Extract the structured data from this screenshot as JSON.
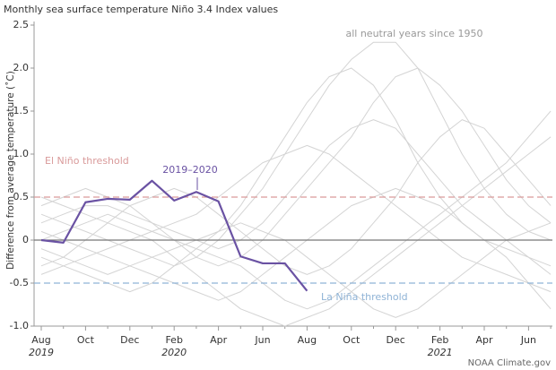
{
  "chart_data": {
    "type": "line",
    "title": "Monthly sea surface temperature Niño 3.4 Index values",
    "y_label": "Difference from average temperature (˚C)",
    "source": "NOAA Climate.gov",
    "neutral_label": "all neutral years since 1950",
    "categories": [
      "Aug",
      null,
      "Oct",
      null,
      "Dec",
      null,
      "Feb",
      null,
      "Apr",
      null,
      "Jun",
      null,
      "Aug",
      null,
      "Oct",
      null,
      "Dec",
      null,
      "Feb",
      null,
      "Apr",
      null,
      "Jun",
      null
    ],
    "years": [
      "2019",
      null,
      null,
      null,
      null,
      null,
      "2020",
      null,
      null,
      null,
      null,
      null,
      null,
      null,
      null,
      null,
      null,
      null,
      "2021",
      null,
      null,
      null,
      null,
      null
    ],
    "ylim": [
      -1.0,
      2.5
    ],
    "yticks": [
      {
        "value": -1.0,
        "label": "-1.0"
      },
      -0.5,
      0,
      0.5,
      {
        "value": 1.0,
        "label": "1.0"
      },
      1.5,
      {
        "value": 2.0,
        "label": "2.0"
      },
      2.5
    ],
    "reference_line": 0,
    "thresholds": [
      {
        "value": 0.5,
        "label": "El Niño threshold",
        "color": "#d99a9a"
      },
      {
        "value": -0.5,
        "label": "La Niña threshold",
        "color": "#8fb3d6"
      }
    ],
    "background_series": [
      {
        "color": "#d4d4d4",
        "values": [
          0.3,
          0.2,
          0.1,
          0.0,
          -0.1,
          -0.2,
          -0.3,
          -0.2,
          0.0,
          0.3,
          0.6,
          1.0,
          1.4,
          1.8,
          2.1,
          2.3,
          2.3,
          2.0,
          1.5,
          1.0,
          0.6,
          0.3,
          0.1,
          0.0
        ]
      },
      {
        "color": "#d4d4d4",
        "values": [
          -0.2,
          -0.3,
          -0.4,
          -0.5,
          -0.6,
          -0.5,
          -0.3,
          -0.1,
          0.1,
          0.4,
          0.8,
          1.2,
          1.6,
          1.9,
          2.0,
          1.8,
          1.4,
          0.9,
          0.5,
          0.2,
          0.0,
          -0.1,
          -0.2,
          -0.3
        ]
      },
      {
        "color": "#d4d4d4",
        "values": [
          0.5,
          0.4,
          0.3,
          0.2,
          0.1,
          0.0,
          -0.2,
          -0.4,
          -0.6,
          -0.8,
          -0.9,
          -1.0,
          -0.9,
          -0.8,
          -0.6,
          -0.4,
          -0.2,
          0.0,
          0.2,
          0.4,
          0.6,
          0.8,
          1.0,
          1.2
        ]
      },
      {
        "color": "#d4d4d4",
        "values": [
          0.0,
          0.1,
          0.2,
          0.3,
          0.2,
          0.1,
          0.0,
          -0.1,
          -0.2,
          -0.3,
          -0.5,
          -0.7,
          -0.8,
          -0.7,
          -0.5,
          -0.3,
          -0.1,
          0.1,
          0.3,
          0.5,
          0.7,
          0.9,
          1.2,
          1.5
        ]
      },
      {
        "color": "#d4d4d4",
        "values": [
          -0.4,
          -0.3,
          -0.2,
          -0.1,
          0.0,
          0.1,
          0.2,
          0.3,
          0.5,
          0.7,
          0.9,
          1.0,
          1.1,
          1.0,
          0.8,
          0.6,
          0.4,
          0.2,
          0.0,
          -0.2,
          -0.3,
          -0.4,
          -0.5,
          -0.6
        ]
      },
      {
        "color": "#d4d4d4",
        "values": [
          0.2,
          0.3,
          0.4,
          0.4,
          0.3,
          0.2,
          0.1,
          0.0,
          -0.1,
          0.0,
          0.2,
          0.5,
          0.8,
          1.1,
          1.3,
          1.4,
          1.3,
          1.0,
          0.7,
          0.4,
          0.2,
          0.0,
          -0.2,
          -0.4
        ]
      },
      {
        "color": "#d4d4d4",
        "values": [
          -0.1,
          -0.2,
          -0.3,
          -0.4,
          -0.3,
          -0.2,
          -0.1,
          0.0,
          0.1,
          0.2,
          0.1,
          0.0,
          -0.2,
          -0.4,
          -0.6,
          -0.8,
          -0.9,
          -0.8,
          -0.6,
          -0.4,
          -0.2,
          0.0,
          0.1,
          0.2
        ]
      },
      {
        "color": "#d4d4d4",
        "values": [
          0.1,
          0.0,
          -0.1,
          -0.2,
          -0.3,
          -0.4,
          -0.5,
          -0.6,
          -0.7,
          -0.6,
          -0.4,
          -0.2,
          0.0,
          0.2,
          0.4,
          0.5,
          0.6,
          0.5,
          0.4,
          0.2,
          0.0,
          -0.2,
          -0.5,
          -0.8
        ]
      },
      {
        "color": "#d4d4d4",
        "values": [
          -0.3,
          -0.2,
          0.0,
          0.2,
          0.4,
          0.5,
          0.6,
          0.5,
          0.3,
          0.1,
          -0.1,
          -0.3,
          -0.4,
          -0.3,
          -0.1,
          0.2,
          0.5,
          0.9,
          1.2,
          1.4,
          1.3,
          1.0,
          0.7,
          0.4
        ]
      },
      {
        "color": "#d4d4d4",
        "values": [
          0.4,
          0.5,
          0.6,
          0.5,
          0.4,
          0.2,
          0.0,
          -0.2,
          -0.3,
          -0.2,
          0.0,
          0.3,
          0.6,
          0.9,
          1.2,
          1.6,
          1.9,
          2.0,
          1.8,
          1.5,
          1.1,
          0.7,
          0.4,
          0.2
        ]
      }
    ],
    "series": [
      {
        "name": "2019–2020",
        "color": "#6a52a3",
        "values": [
          0.0,
          -0.03,
          0.44,
          0.48,
          0.47,
          0.69,
          0.46,
          0.56,
          0.45,
          -0.19,
          -0.27,
          -0.27,
          -0.59,
          null,
          null,
          null,
          null,
          null,
          null,
          null,
          null,
          null,
          null,
          null
        ]
      }
    ]
  }
}
